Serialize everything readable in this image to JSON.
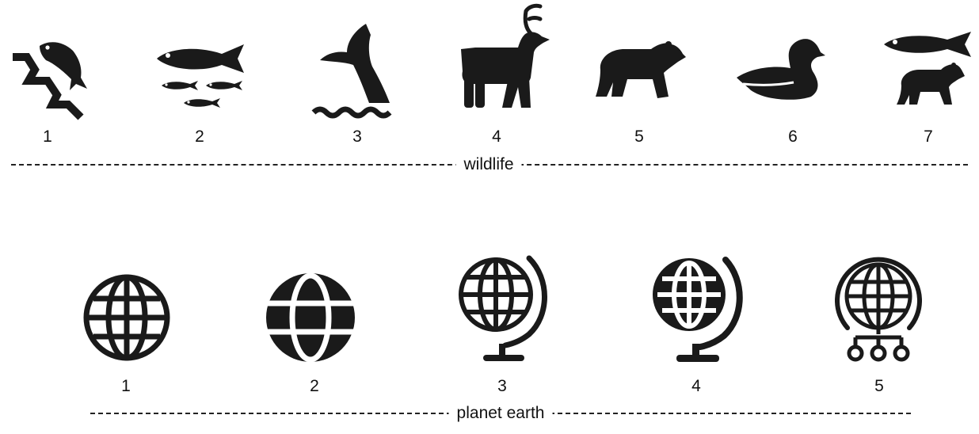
{
  "ink_color": "#1a1a1a",
  "sections": {
    "wildlife": {
      "label": "wildlife",
      "icons": [
        {
          "number": "1",
          "icon": "fish-jumping-stream-icon"
        },
        {
          "number": "2",
          "icon": "fish-school-icon"
        },
        {
          "number": "3",
          "icon": "whale-tail-icon"
        },
        {
          "number": "4",
          "icon": "deer-icon"
        },
        {
          "number": "5",
          "icon": "bear-icon"
        },
        {
          "number": "6",
          "icon": "duck-icon"
        },
        {
          "number": "7",
          "icon": "fish-and-bear-icon"
        }
      ]
    },
    "planet_earth": {
      "label": "planet earth",
      "icons": [
        {
          "number": "1",
          "icon": "globe-grid-icon"
        },
        {
          "number": "2",
          "icon": "globe-solid-icon"
        },
        {
          "number": "3",
          "icon": "desk-globe-icon"
        },
        {
          "number": "4",
          "icon": "desk-globe-bold-icon"
        },
        {
          "number": "5",
          "icon": "globe-network-icon"
        }
      ]
    }
  }
}
